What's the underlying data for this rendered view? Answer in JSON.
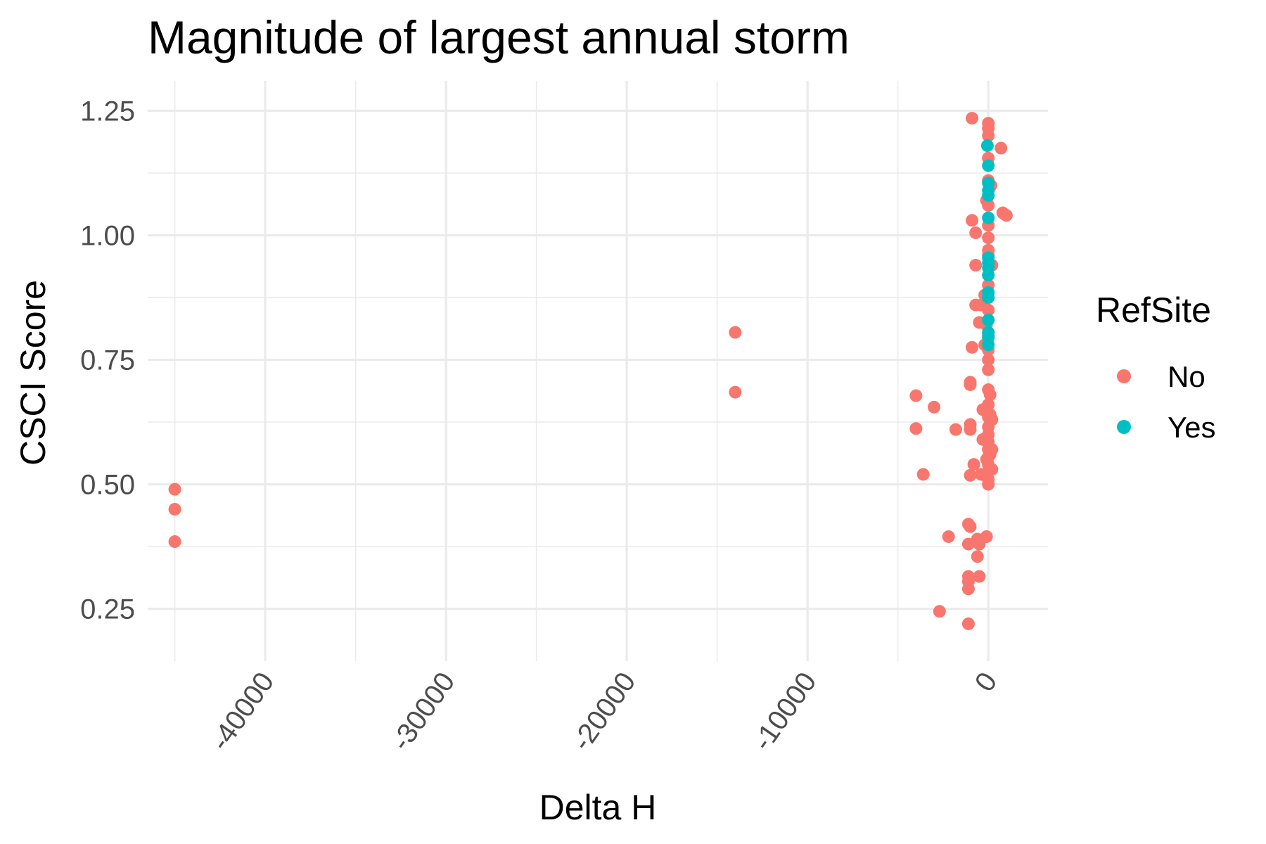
{
  "chart_data": {
    "type": "scatter",
    "title": "Magnitude of largest annual storm",
    "xlabel": "Delta H",
    "ylabel": "CSCI Score",
    "xlim": [
      -46500,
      3300
    ],
    "ylim": [
      0.145,
      1.31
    ],
    "x_ticks": [
      -40000,
      -30000,
      -20000,
      -10000,
      0
    ],
    "x_tick_labels": [
      "-40000",
      "-30000",
      "-20000",
      "-10000",
      "0"
    ],
    "x_minor_ticks": [
      -45000,
      -35000,
      -25000,
      -15000,
      -5000
    ],
    "y_ticks": [
      0.25,
      0.5,
      0.75,
      1.0,
      1.25
    ],
    "y_tick_labels": [
      "0.25",
      "0.50",
      "0.75",
      "1.00",
      "1.25"
    ],
    "y_minor_ticks": [
      0.375,
      0.625,
      0.875,
      1.125
    ],
    "grid": true,
    "legend": {
      "title": "RefSite",
      "position": "right",
      "entries": [
        {
          "label": "No",
          "color": "#F8766D"
        },
        {
          "label": "Yes",
          "color": "#00BFC4"
        }
      ]
    },
    "series": [
      {
        "name": "No",
        "color": "#F8766D",
        "points": [
          [
            -45000,
            0.49
          ],
          [
            -45000,
            0.45
          ],
          [
            -45000,
            0.385
          ],
          [
            -14000,
            0.805
          ],
          [
            -14000,
            0.685
          ],
          [
            -4000,
            0.678
          ],
          [
            -4000,
            0.612
          ],
          [
            -3600,
            0.52
          ],
          [
            -3000,
            0.655
          ],
          [
            -2700,
            0.245
          ],
          [
            -2200,
            0.395
          ],
          [
            -1800,
            0.61
          ],
          [
            -1100,
            0.22
          ],
          [
            -1100,
            0.29
          ],
          [
            -1100,
            0.305
          ],
          [
            -1100,
            0.315
          ],
          [
            -1100,
            0.38
          ],
          [
            -1100,
            0.42
          ],
          [
            -1000,
            0.415
          ],
          [
            -1000,
            0.62
          ],
          [
            -1000,
            0.61
          ],
          [
            -1000,
            0.7
          ],
          [
            -1000,
            0.705
          ],
          [
            -1000,
            0.518
          ],
          [
            -900,
            1.235
          ],
          [
            -900,
            1.03
          ],
          [
            -900,
            0.775
          ],
          [
            -800,
            0.54
          ],
          [
            -700,
            1.005
          ],
          [
            -700,
            0.94
          ],
          [
            -700,
            0.86
          ],
          [
            -600,
            0.355
          ],
          [
            -600,
            0.39
          ],
          [
            -500,
            0.38
          ],
          [
            -500,
            0.315
          ],
          [
            -500,
            0.825
          ],
          [
            -400,
            0.86
          ],
          [
            -400,
            0.52
          ],
          [
            -300,
            0.59
          ],
          [
            -300,
            0.65
          ],
          [
            -200,
            0.78
          ],
          [
            -200,
            0.88
          ],
          [
            -100,
            1.07
          ],
          [
            -100,
            0.82
          ],
          [
            -100,
            0.55
          ],
          [
            -100,
            0.395
          ],
          [
            0,
            1.225
          ],
          [
            0,
            1.215
          ],
          [
            0,
            1.2
          ],
          [
            0,
            1.155
          ],
          [
            0,
            1.11
          ],
          [
            0,
            1.06
          ],
          [
            0,
            1.02
          ],
          [
            0,
            0.995
          ],
          [
            0,
            0.97
          ],
          [
            0,
            0.96
          ],
          [
            0,
            0.9
          ],
          [
            0,
            0.85
          ],
          [
            0,
            0.8
          ],
          [
            0,
            0.77
          ],
          [
            0,
            0.75
          ],
          [
            0,
            0.73
          ],
          [
            0,
            0.69
          ],
          [
            0,
            0.66
          ],
          [
            0,
            0.635
          ],
          [
            0,
            0.615
          ],
          [
            0,
            0.6
          ],
          [
            0,
            0.585
          ],
          [
            0,
            0.57
          ],
          [
            0,
            0.555
          ],
          [
            0,
            0.54
          ],
          [
            0,
            0.525
          ],
          [
            0,
            0.51
          ],
          [
            0,
            0.5
          ],
          [
            100,
            0.68
          ],
          [
            100,
            0.64
          ],
          [
            100,
            0.56
          ],
          [
            150,
            1.1
          ],
          [
            200,
            0.94
          ],
          [
            200,
            0.63
          ],
          [
            200,
            0.57
          ],
          [
            200,
            0.53
          ],
          [
            700,
            1.175
          ],
          [
            800,
            1.045
          ],
          [
            1000,
            1.04
          ]
        ]
      },
      {
        "name": "Yes",
        "color": "#00BFC4",
        "points": [
          [
            -50,
            1.18
          ],
          [
            0,
            1.14
          ],
          [
            0,
            1.105
          ],
          [
            0,
            1.09
          ],
          [
            0,
            1.08
          ],
          [
            0,
            1.035
          ],
          [
            0,
            0.955
          ],
          [
            0,
            0.945
          ],
          [
            0,
            0.935
          ],
          [
            0,
            0.92
          ],
          [
            0,
            0.885
          ],
          [
            0,
            0.875
          ],
          [
            0,
            0.83
          ],
          [
            0,
            0.805
          ],
          [
            0,
            0.795
          ],
          [
            0,
            0.78
          ]
        ]
      }
    ]
  }
}
